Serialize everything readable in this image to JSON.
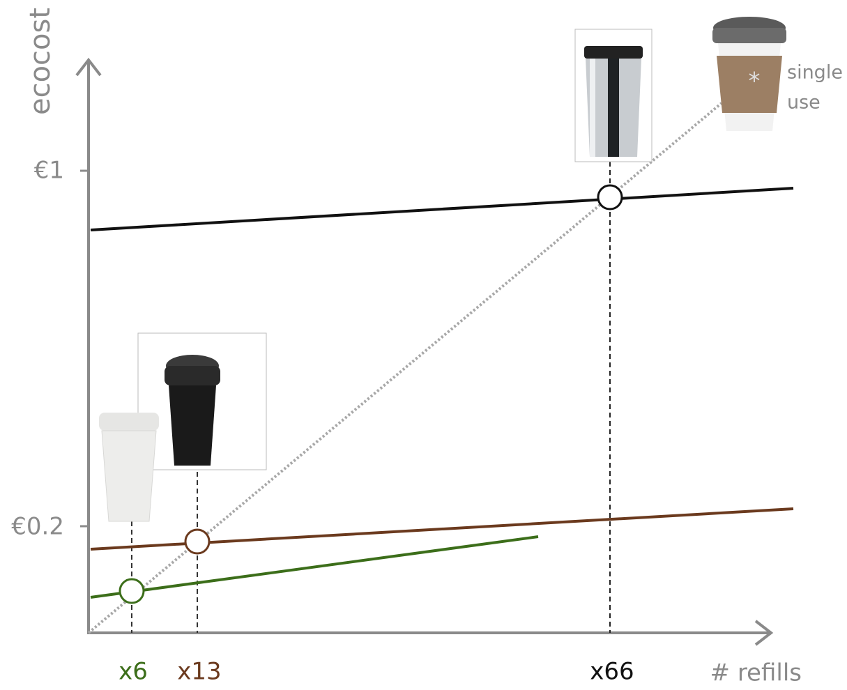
{
  "axes": {
    "y_label": "ecocost",
    "x_label": "# refills"
  },
  "y_labels": [
    "€1",
    "€0.2"
  ],
  "x_labels": [
    "x6",
    "x13",
    "x66"
  ],
  "annotation": {
    "line1": "single",
    "line2": "use"
  }
}
